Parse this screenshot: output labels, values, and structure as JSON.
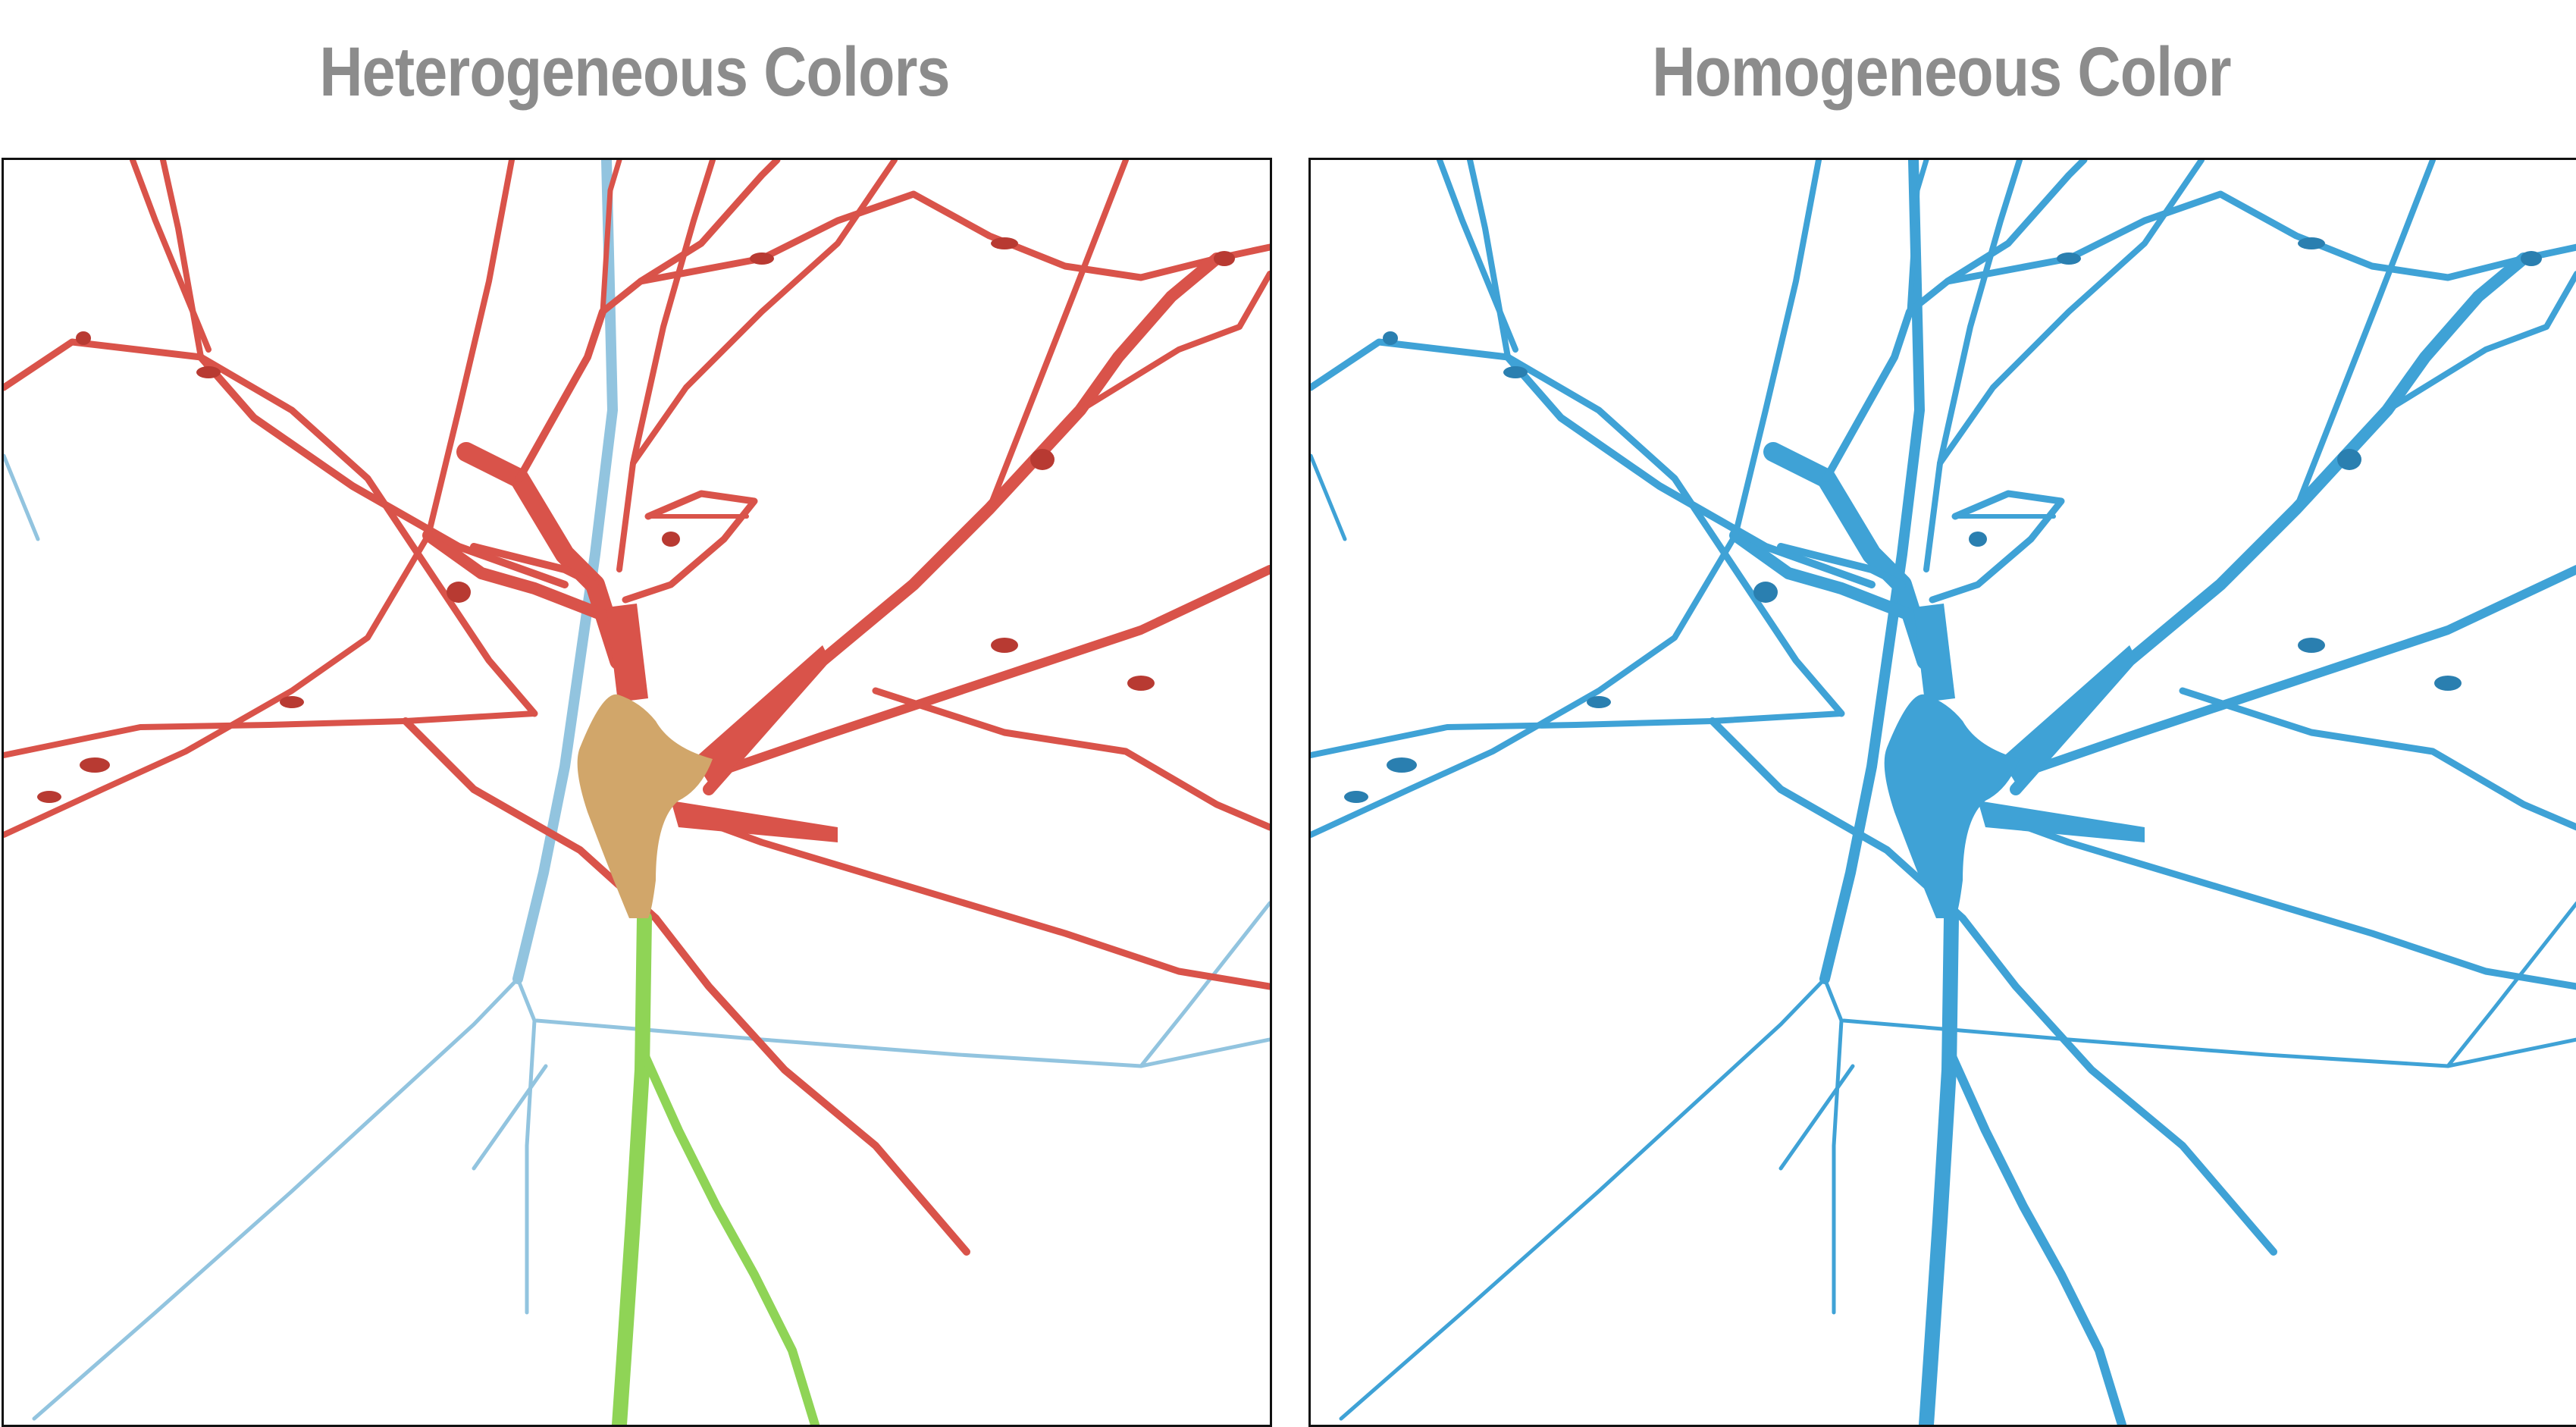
{
  "figure": {
    "left_panel": {
      "title": "Heterogeneous Colors",
      "colors": {
        "dendrites": "#d9534a",
        "dendrites_dark": "#b83a32",
        "soma": "#d1a66a",
        "axon": "#8fd456",
        "neighbor_neurite": "#92c4df"
      }
    },
    "right_panel": {
      "title": "Homogeneous Color",
      "colors": {
        "neuron": "#3fa2d6",
        "neuron_dark": "#2a7fb0",
        "neighbor_neurite": "#3fa2d6"
      }
    }
  }
}
